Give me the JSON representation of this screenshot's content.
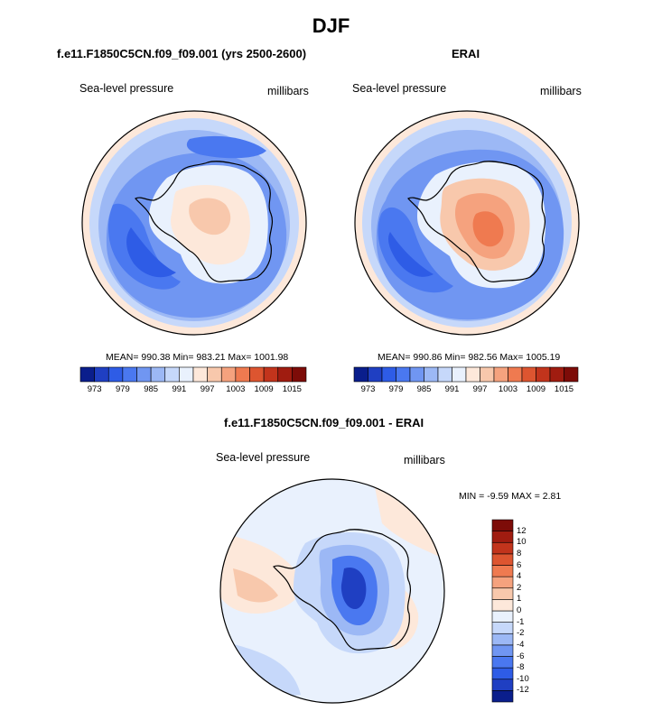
{
  "figure": {
    "title": "DJF",
    "panels": [
      {
        "title": "f.e11.F1850C5CN.f09_f09.001 (yrs 2500-2600)",
        "left_label": "Sea-level pressure",
        "right_label": "millibars",
        "stats": "MEAN= 990.38  Min= 983.21  Max= 1001.98"
      },
      {
        "title": "ERAI",
        "left_label": "Sea-level pressure",
        "right_label": "millibars",
        "stats": "MEAN= 990.86  Min= 982.56  Max= 1005.19"
      },
      {
        "title": "f.e11.F1850C5CN.f09_f09.001 - ERAI",
        "left_label": "Sea-level pressure",
        "right_label": "millibars",
        "stats": "MIN =  -9.59 MAX =   2.81"
      }
    ]
  },
  "chart_data": [
    {
      "type": "heatmap",
      "projection": "south-polar-stereographic",
      "title": "f.e11.F1850C5CN.f09_f09.001 (yrs 2500-2600)",
      "variable": "Sea-level pressure",
      "units": "millibars",
      "mean": 990.38,
      "min": 983.21,
      "max": 1001.98,
      "colorbar": {
        "orientation": "horizontal",
        "levels": [
          973,
          976,
          979,
          982,
          985,
          988,
          991,
          994,
          997,
          1000,
          1003,
          1006,
          1009,
          1012,
          1015
        ],
        "tick_labels": [
          "973",
          "979",
          "985",
          "991",
          "997",
          "1003",
          "1009",
          "1015"
        ],
        "colors": [
          "#0a1e8c",
          "#1f3fc2",
          "#2e5ce6",
          "#4a78f0",
          "#7096f2",
          "#9cb8f5",
          "#c6d8fa",
          "#e9f1fd",
          "#fde8da",
          "#f8c8ac",
          "#f5a27e",
          "#ef7a50",
          "#dd5530",
          "#c2341c",
          "#a01c10",
          "#7d0c08"
        ]
      }
    },
    {
      "type": "heatmap",
      "projection": "south-polar-stereographic",
      "title": "ERAI",
      "variable": "Sea-level pressure",
      "units": "millibars",
      "mean": 990.86,
      "min": 982.56,
      "max": 1005.19,
      "colorbar": {
        "orientation": "horizontal",
        "levels": [
          973,
          976,
          979,
          982,
          985,
          988,
          991,
          994,
          997,
          1000,
          1003,
          1006,
          1009,
          1012,
          1015
        ],
        "tick_labels": [
          "973",
          "979",
          "985",
          "991",
          "997",
          "1003",
          "1009",
          "1015"
        ],
        "colors": [
          "#0a1e8c",
          "#1f3fc2",
          "#2e5ce6",
          "#4a78f0",
          "#7096f2",
          "#9cb8f5",
          "#c6d8fa",
          "#e9f1fd",
          "#fde8da",
          "#f8c8ac",
          "#f5a27e",
          "#ef7a50",
          "#dd5530",
          "#c2341c",
          "#a01c10",
          "#7d0c08"
        ]
      }
    },
    {
      "type": "heatmap",
      "projection": "south-polar-stereographic",
      "title": "f.e11.F1850C5CN.f09_f09.001 - ERAI",
      "variable": "Sea-level pressure",
      "units": "millibars",
      "min": -9.59,
      "max": 2.81,
      "colorbar": {
        "orientation": "vertical",
        "levels": [
          -12,
          -10,
          -8,
          -6,
          -4,
          -2,
          -1,
          0,
          1,
          2,
          4,
          6,
          8,
          10,
          12
        ],
        "tick_labels": [
          "-12",
          "-10",
          "-8",
          "-6",
          "-4",
          "-2",
          "-1",
          "0",
          "1",
          "2",
          "4",
          "6",
          "8",
          "10",
          "12"
        ],
        "colors": [
          "#0a1e8c",
          "#1f3fc2",
          "#2e5ce6",
          "#4a78f0",
          "#7096f2",
          "#9cb8f5",
          "#c6d8fa",
          "#e9f1fd",
          "#fde8da",
          "#f8c8ac",
          "#f5a27e",
          "#ef7a50",
          "#dd5530",
          "#c2341c",
          "#a01c10",
          "#7d0c08"
        ]
      }
    }
  ]
}
